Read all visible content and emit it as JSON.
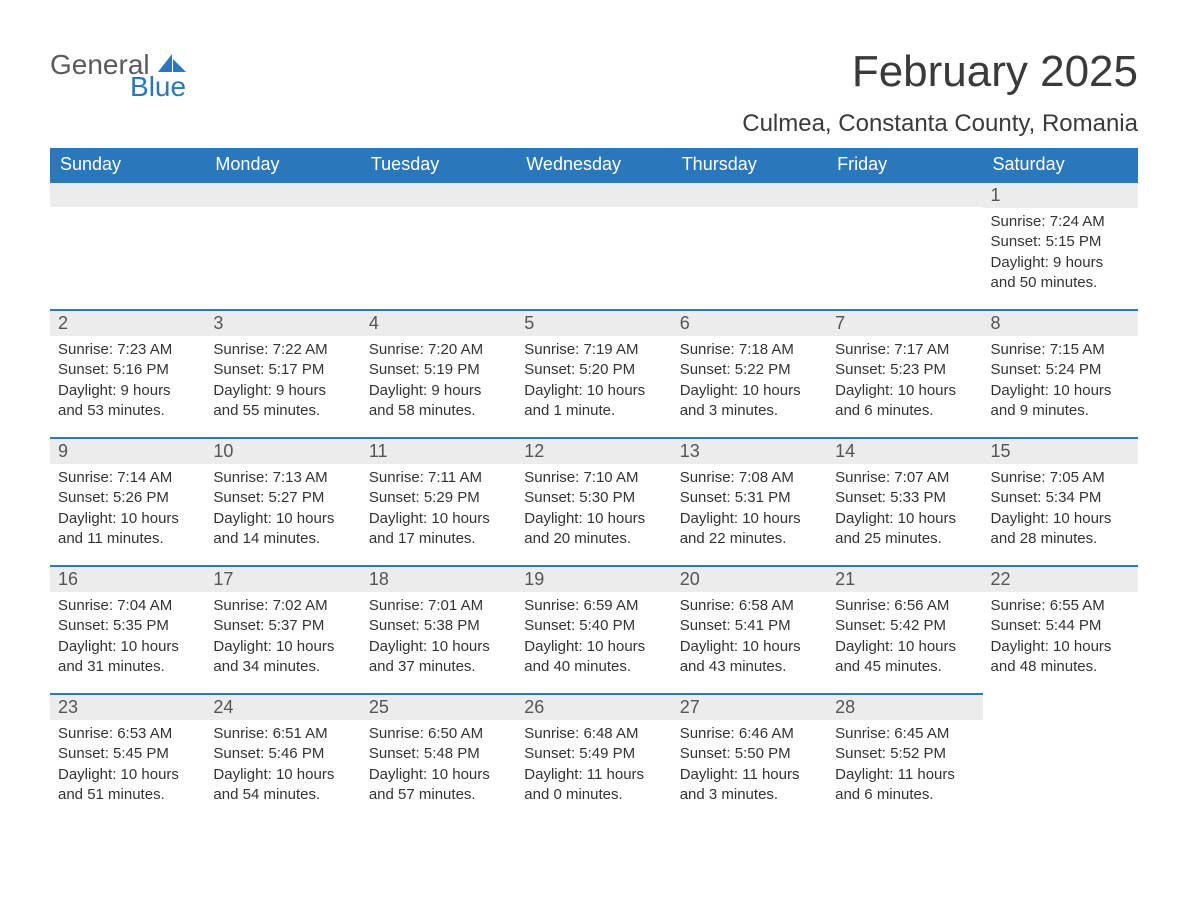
{
  "brand": {
    "general": "General",
    "blue": "Blue"
  },
  "title": "February 2025",
  "location": "Culmea, Constanta County, Romania",
  "colors": {
    "header_bg": "#2a77bb",
    "header_text": "#ffffff",
    "daynum_bg": "#ececec",
    "border_top": "#2a77bb",
    "body_text": "#333333",
    "page_bg": "#ffffff",
    "logo_gray": "#5a5a5a",
    "logo_blue": "#2a77bb"
  },
  "dayHeaders": [
    "Sunday",
    "Monday",
    "Tuesday",
    "Wednesday",
    "Thursday",
    "Friday",
    "Saturday"
  ],
  "weeks": [
    [
      null,
      null,
      null,
      null,
      null,
      null,
      {
        "n": "1",
        "sunrise": "Sunrise: 7:24 AM",
        "sunset": "Sunset: 5:15 PM",
        "daylight": "Daylight: 9 hours and 50 minutes."
      }
    ],
    [
      {
        "n": "2",
        "sunrise": "Sunrise: 7:23 AM",
        "sunset": "Sunset: 5:16 PM",
        "daylight": "Daylight: 9 hours and 53 minutes."
      },
      {
        "n": "3",
        "sunrise": "Sunrise: 7:22 AM",
        "sunset": "Sunset: 5:17 PM",
        "daylight": "Daylight: 9 hours and 55 minutes."
      },
      {
        "n": "4",
        "sunrise": "Sunrise: 7:20 AM",
        "sunset": "Sunset: 5:19 PM",
        "daylight": "Daylight: 9 hours and 58 minutes."
      },
      {
        "n": "5",
        "sunrise": "Sunrise: 7:19 AM",
        "sunset": "Sunset: 5:20 PM",
        "daylight": "Daylight: 10 hours and 1 minute."
      },
      {
        "n": "6",
        "sunrise": "Sunrise: 7:18 AM",
        "sunset": "Sunset: 5:22 PM",
        "daylight": "Daylight: 10 hours and 3 minutes."
      },
      {
        "n": "7",
        "sunrise": "Sunrise: 7:17 AM",
        "sunset": "Sunset: 5:23 PM",
        "daylight": "Daylight: 10 hours and 6 minutes."
      },
      {
        "n": "8",
        "sunrise": "Sunrise: 7:15 AM",
        "sunset": "Sunset: 5:24 PM",
        "daylight": "Daylight: 10 hours and 9 minutes."
      }
    ],
    [
      {
        "n": "9",
        "sunrise": "Sunrise: 7:14 AM",
        "sunset": "Sunset: 5:26 PM",
        "daylight": "Daylight: 10 hours and 11 minutes."
      },
      {
        "n": "10",
        "sunrise": "Sunrise: 7:13 AM",
        "sunset": "Sunset: 5:27 PM",
        "daylight": "Daylight: 10 hours and 14 minutes."
      },
      {
        "n": "11",
        "sunrise": "Sunrise: 7:11 AM",
        "sunset": "Sunset: 5:29 PM",
        "daylight": "Daylight: 10 hours and 17 minutes."
      },
      {
        "n": "12",
        "sunrise": "Sunrise: 7:10 AM",
        "sunset": "Sunset: 5:30 PM",
        "daylight": "Daylight: 10 hours and 20 minutes."
      },
      {
        "n": "13",
        "sunrise": "Sunrise: 7:08 AM",
        "sunset": "Sunset: 5:31 PM",
        "daylight": "Daylight: 10 hours and 22 minutes."
      },
      {
        "n": "14",
        "sunrise": "Sunrise: 7:07 AM",
        "sunset": "Sunset: 5:33 PM",
        "daylight": "Daylight: 10 hours and 25 minutes."
      },
      {
        "n": "15",
        "sunrise": "Sunrise: 7:05 AM",
        "sunset": "Sunset: 5:34 PM",
        "daylight": "Daylight: 10 hours and 28 minutes."
      }
    ],
    [
      {
        "n": "16",
        "sunrise": "Sunrise: 7:04 AM",
        "sunset": "Sunset: 5:35 PM",
        "daylight": "Daylight: 10 hours and 31 minutes."
      },
      {
        "n": "17",
        "sunrise": "Sunrise: 7:02 AM",
        "sunset": "Sunset: 5:37 PM",
        "daylight": "Daylight: 10 hours and 34 minutes."
      },
      {
        "n": "18",
        "sunrise": "Sunrise: 7:01 AM",
        "sunset": "Sunset: 5:38 PM",
        "daylight": "Daylight: 10 hours and 37 minutes."
      },
      {
        "n": "19",
        "sunrise": "Sunrise: 6:59 AM",
        "sunset": "Sunset: 5:40 PM",
        "daylight": "Daylight: 10 hours and 40 minutes."
      },
      {
        "n": "20",
        "sunrise": "Sunrise: 6:58 AM",
        "sunset": "Sunset: 5:41 PM",
        "daylight": "Daylight: 10 hours and 43 minutes."
      },
      {
        "n": "21",
        "sunrise": "Sunrise: 6:56 AM",
        "sunset": "Sunset: 5:42 PM",
        "daylight": "Daylight: 10 hours and 45 minutes."
      },
      {
        "n": "22",
        "sunrise": "Sunrise: 6:55 AM",
        "sunset": "Sunset: 5:44 PM",
        "daylight": "Daylight: 10 hours and 48 minutes."
      }
    ],
    [
      {
        "n": "23",
        "sunrise": "Sunrise: 6:53 AM",
        "sunset": "Sunset: 5:45 PM",
        "daylight": "Daylight: 10 hours and 51 minutes."
      },
      {
        "n": "24",
        "sunrise": "Sunrise: 6:51 AM",
        "sunset": "Sunset: 5:46 PM",
        "daylight": "Daylight: 10 hours and 54 minutes."
      },
      {
        "n": "25",
        "sunrise": "Sunrise: 6:50 AM",
        "sunset": "Sunset: 5:48 PM",
        "daylight": "Daylight: 10 hours and 57 minutes."
      },
      {
        "n": "26",
        "sunrise": "Sunrise: 6:48 AM",
        "sunset": "Sunset: 5:49 PM",
        "daylight": "Daylight: 11 hours and 0 minutes."
      },
      {
        "n": "27",
        "sunrise": "Sunrise: 6:46 AM",
        "sunset": "Sunset: 5:50 PM",
        "daylight": "Daylight: 11 hours and 3 minutes."
      },
      {
        "n": "28",
        "sunrise": "Sunrise: 6:45 AM",
        "sunset": "Sunset: 5:52 PM",
        "daylight": "Daylight: 11 hours and 6 minutes."
      },
      null
    ]
  ]
}
